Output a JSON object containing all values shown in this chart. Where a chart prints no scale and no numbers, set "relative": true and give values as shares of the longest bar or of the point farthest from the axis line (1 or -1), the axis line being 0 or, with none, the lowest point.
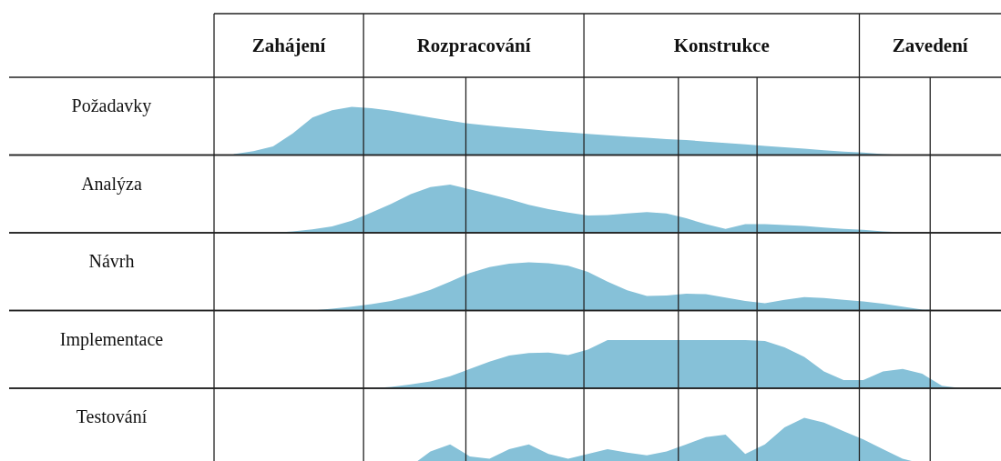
{
  "chart_data": [
    {
      "type": "other",
      "annotations": [
        "Zahájení",
        "Rozpracování",
        "Konstrukce",
        "Zavedení"
      ]
    },
    {
      "type": "area",
      "title": "Požadavky",
      "relative": true,
      "color": "#86c1d8",
      "categories": [
        null,
        null,
        null,
        null,
        null,
        null,
        null,
        null,
        null,
        null,
        null,
        null,
        null,
        null,
        null,
        null,
        null,
        null,
        null,
        null,
        null,
        null,
        null,
        null,
        null,
        null,
        null,
        null,
        null,
        null,
        null,
        null,
        null,
        null,
        null,
        null,
        null,
        null,
        null,
        null,
        null
      ],
      "values": [
        null,
        0.02,
        0.08,
        0.18,
        0.45,
        0.78,
        0.93,
        1,
        0.97,
        0.92,
        0.85,
        0.78,
        0.71,
        0.65,
        0.61,
        0.57,
        0.54,
        0.5,
        0.47,
        0.44,
        0.41,
        0.38,
        0.36,
        0.33,
        0.31,
        0.28,
        0.25,
        0.22,
        0.19,
        0.16,
        0.13,
        0.1,
        0.07,
        0.05,
        0.02,
        0,
        null,
        null,
        null,
        null,
        null
      ]
    },
    {
      "type": "area",
      "title": "Analýza",
      "relative": true,
      "color": "#86c1d8",
      "categories": [
        null,
        null,
        null,
        null,
        null,
        null,
        null,
        null,
        null,
        null,
        null,
        null,
        null,
        null,
        null,
        null,
        null,
        null,
        null,
        null,
        null,
        null,
        null,
        null,
        null,
        null,
        null,
        null,
        null,
        null,
        null,
        null,
        null,
        null,
        null,
        null,
        null,
        null,
        null,
        null,
        null
      ],
      "values": [
        null,
        null,
        null,
        0,
        0.03,
        0.07,
        0.13,
        0.25,
        0.42,
        0.6,
        0.8,
        0.95,
        1,
        0.9,
        0.8,
        0.7,
        0.58,
        0.49,
        0.42,
        0.36,
        0.37,
        0.4,
        0.43,
        0.4,
        0.3,
        0.18,
        0.08,
        0.18,
        0.18,
        0.16,
        0.14,
        0.11,
        0.08,
        0.06,
        0.03,
        0.01,
        0,
        null,
        null,
        null,
        null
      ]
    },
    {
      "type": "area",
      "title": "Návrh",
      "relative": true,
      "color": "#86c1d8",
      "categories": [
        null,
        null,
        null,
        null,
        null,
        null,
        null,
        null,
        null,
        null,
        null,
        null,
        null,
        null,
        null,
        null,
        null,
        null,
        null,
        null,
        null,
        null,
        null,
        null,
        null,
        null,
        null,
        null,
        null,
        null,
        null,
        null,
        null,
        null,
        null,
        null,
        null,
        null,
        null,
        null,
        null
      ],
      "values": [
        null,
        null,
        null,
        null,
        null,
        0,
        0.04,
        0.08,
        0.13,
        0.2,
        0.3,
        0.43,
        0.6,
        0.78,
        0.9,
        0.97,
        1,
        0.98,
        0.93,
        0.8,
        0.6,
        0.42,
        0.3,
        0.31,
        0.35,
        0.34,
        0.27,
        0.2,
        0.15,
        0.22,
        0.28,
        0.26,
        0.22,
        0.19,
        0.14,
        0.08,
        0.02,
        0,
        null,
        null,
        null
      ]
    },
    {
      "type": "area",
      "title": "Implementace",
      "relative": true,
      "color": "#86c1d8",
      "categories": [
        null,
        null,
        null,
        null,
        null,
        null,
        null,
        null,
        null,
        null,
        null,
        null,
        null,
        null,
        null,
        null,
        null,
        null,
        null,
        null,
        null,
        null,
        null,
        null,
        null,
        null,
        null,
        null,
        null,
        null,
        null,
        null,
        null,
        null,
        null,
        null,
        null,
        null,
        null,
        null,
        null
      ],
      "values": [
        null,
        null,
        null,
        null,
        null,
        null,
        null,
        null,
        0,
        0.03,
        0.08,
        0.14,
        0.25,
        0.4,
        0.55,
        0.68,
        0.73,
        0.74,
        0.69,
        0.8,
        1,
        1,
        1,
        1,
        1,
        1,
        1,
        1,
        0.98,
        0.85,
        0.65,
        0.35,
        0.17,
        0.17,
        0.35,
        0.4,
        0.3,
        0.05,
        0,
        null,
        null
      ]
    },
    {
      "type": "area",
      "title": "Testování",
      "relative": true,
      "color": "#86c1d8",
      "categories": [
        null,
        null,
        null,
        null,
        null,
        null,
        null,
        null,
        null,
        null,
        null,
        null,
        null,
        null,
        null,
        null,
        null,
        null,
        null,
        null,
        null,
        null,
        null,
        null,
        null,
        null,
        null,
        null,
        null,
        null,
        null,
        null,
        null,
        null,
        null,
        null,
        null,
        null,
        null,
        null,
        null
      ],
      "values": [
        null,
        null,
        null,
        null,
        null,
        null,
        null,
        null,
        null,
        null,
        0,
        0.3,
        0.45,
        0.2,
        0.15,
        0.35,
        0.45,
        0.25,
        0.15,
        0.25,
        0.35,
        0.28,
        0.22,
        0.3,
        0.45,
        0.6,
        0.65,
        0.25,
        0.45,
        0.8,
        1,
        0.9,
        0.72,
        0.55,
        0.35,
        0.15,
        0.05,
        null,
        null,
        null,
        null
      ]
    }
  ]
}
